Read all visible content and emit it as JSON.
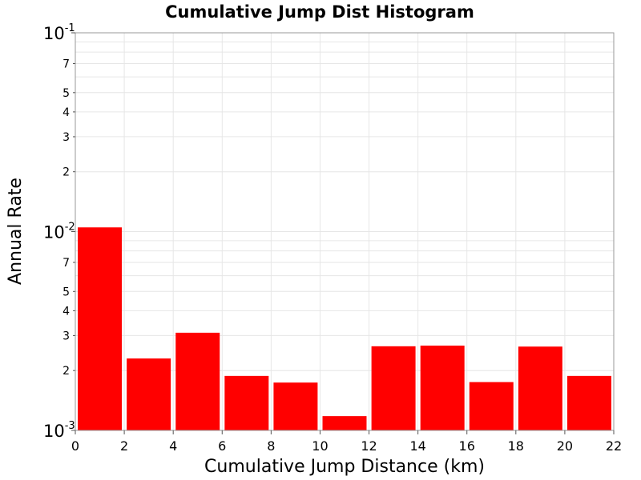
{
  "chart_data": {
    "type": "bar",
    "title": "Cumulative Jump Dist Histogram",
    "xlabel": "Cumulative Jump Distance (km)",
    "ylabel": "Annual Rate",
    "x_scale": "linear",
    "y_scale": "log",
    "xlim": [
      0,
      22
    ],
    "ylim": [
      0.001,
      0.1
    ],
    "grid": true,
    "x_ticks": [
      "0",
      "2",
      "4",
      "6",
      "8",
      "10",
      "12",
      "14",
      "16",
      "18",
      "20",
      "22"
    ],
    "y_major_ticks": [
      {
        "value": 0.001,
        "base": "10",
        "exponent": "-3"
      },
      {
        "value": 0.01,
        "base": "10",
        "exponent": "-2"
      },
      {
        "value": 0.1,
        "base": "10",
        "exponent": "-1"
      }
    ],
    "y_minor_labels": [
      "2",
      "3",
      "4",
      "5",
      "7"
    ],
    "bar_width": 1.8,
    "bar_color": "#ff0000",
    "bins": [
      1,
      3,
      5,
      7,
      9,
      11,
      13,
      15,
      17,
      19,
      21
    ],
    "values": [
      0.0105,
      0.0023,
      0.0031,
      0.00188,
      0.00174,
      0.00118,
      0.00265,
      0.00267,
      0.00175,
      0.00264,
      0.00188
    ]
  }
}
